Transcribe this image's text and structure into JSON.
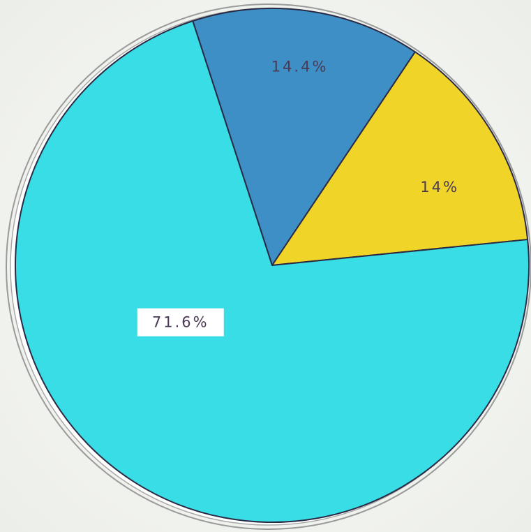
{
  "chart_data": {
    "type": "pie",
    "slices": [
      {
        "label": "14.4%",
        "value": 14.4,
        "color": "#3d8fc6"
      },
      {
        "label": "14%",
        "value": 14.0,
        "color": "#f0d428"
      },
      {
        "label": "71.6%",
        "value": 71.6,
        "color": "#38dde6"
      }
    ],
    "title": "",
    "legend": "none"
  },
  "colors": {
    "paper": "#f4f6f2",
    "outline": "#8f8f8f",
    "slice_edge": "#2a2a45"
  }
}
